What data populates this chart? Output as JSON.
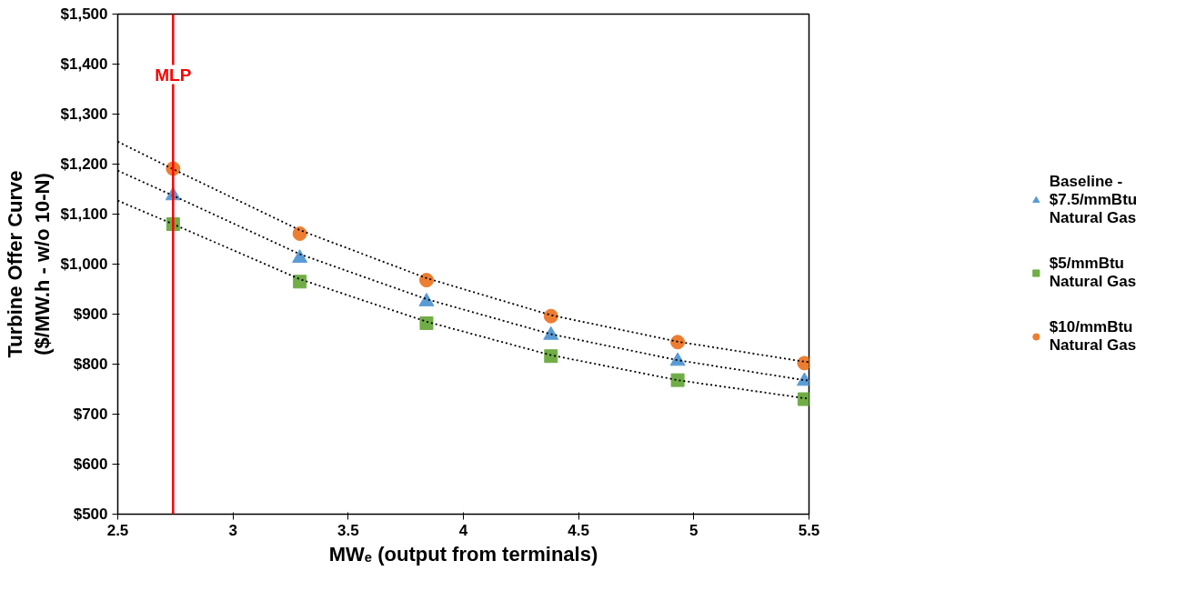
{
  "chart_data": {
    "type": "scatter",
    "xlabel": "MWₑ (output from terminals)",
    "ylabel": "Turbine Offer Curve\n($/MW.h - w/o 10-N)",
    "xlim": [
      2.5,
      5.5
    ],
    "xticks": [
      2.5,
      3,
      3.5,
      4,
      4.5,
      5,
      5.5
    ],
    "ylim": [
      500,
      1500
    ],
    "yticks": [
      {
        "value": 500,
        "label": "$500"
      },
      {
        "value": 600,
        "label": "$600"
      },
      {
        "value": 700,
        "label": "$700"
      },
      {
        "value": 800,
        "label": "$800"
      },
      {
        "value": 900,
        "label": "$900"
      },
      {
        "value": 1000,
        "label": "$1,000"
      },
      {
        "value": 1100,
        "label": "$1,100"
      },
      {
        "value": 1200,
        "label": "$1,200"
      },
      {
        "value": 1300,
        "label": "$1,300"
      },
      {
        "value": 1400,
        "label": "$1,400"
      },
      {
        "value": 1500,
        "label": "$1,500"
      }
    ],
    "x": [
      2.74,
      3.29,
      3.84,
      4.38,
      4.93,
      5.48
    ],
    "series": [
      {
        "name": "Baseline - $7.5/mmBtu Natural Gas",
        "color": "#5b9bd5",
        "marker": "triangle",
        "values": [
          1137,
          1012,
          925,
          858,
          806,
          766
        ]
      },
      {
        "name": "$5/mmBtu Natural Gas",
        "color": "#70ad47",
        "marker": "square",
        "values": [
          1080,
          965,
          882,
          816,
          768,
          730
        ]
      },
      {
        "name": "$10/mmBtu Natural Gas",
        "color": "#ed7d31",
        "marker": "circle",
        "values": [
          1191,
          1061,
          968,
          896,
          844,
          802
        ]
      },
      {
        "type": "line",
        "color": "#000000",
        "line_style": "dotted",
        "x": [
          2.5,
          2.74,
          3.29,
          3.84,
          4.38,
          4.93,
          5.48,
          5.5
        ],
        "values": [
          1187,
          1137,
          1020,
          930,
          860,
          808,
          768,
          767
        ]
      },
      {
        "type": "line",
        "color": "#000000",
        "line_style": "dotted",
        "x": [
          2.5,
          2.74,
          3.29,
          3.84,
          4.38,
          4.93,
          5.48,
          5.5
        ],
        "values": [
          1127,
          1080,
          970,
          885,
          818,
          768,
          732,
          731
        ]
      },
      {
        "type": "line",
        "color": "#000000",
        "line_style": "dotted",
        "x": [
          2.5,
          2.74,
          3.29,
          3.84,
          4.38,
          4.93,
          5.48,
          5.5
        ],
        "values": [
          1245,
          1190,
          1068,
          972,
          898,
          845,
          805,
          804
        ]
      }
    ],
    "ref_lines": [
      {
        "axis": "x",
        "value": 2.74,
        "label": "MLP",
        "color": "#ff0000"
      }
    ],
    "legend": "right",
    "grid": false
  }
}
